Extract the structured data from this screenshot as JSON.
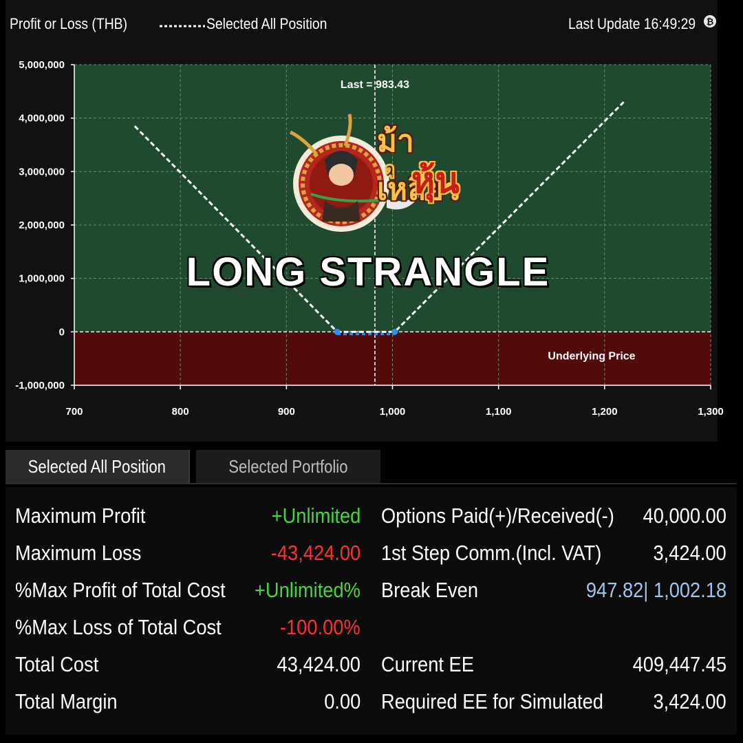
{
  "header": {
    "title": "Profit or Loss (THB)",
    "legend_label": "Selected All Position",
    "last_update": "Last Update 16:49:29"
  },
  "overlay": {
    "title": "LONG STRANGLE",
    "logo_text_top": "ม้าเหลียว",
    "logo_text_mid": "ดู",
    "logo_text_bottom": "หุ้น"
  },
  "chart_data": {
    "type": "line",
    "title": "Profit or Loss (THB)",
    "xlabel": "Underlying Price",
    "ylabel": "Profit or Loss (THB)",
    "xlim": [
      700,
      1300
    ],
    "ylim": [
      -1000000,
      5000000
    ],
    "x_ticks": [
      700,
      800,
      900,
      1000,
      1100,
      1200,
      1300
    ],
    "x_tick_labels": [
      "700",
      "800",
      "900",
      "1,000",
      "1,100",
      "1,200",
      "1,300"
    ],
    "y_ticks": [
      -1000000,
      0,
      1000000,
      2000000,
      3000000,
      4000000,
      5000000
    ],
    "y_tick_labels": [
      "-1,000,000",
      "0",
      "1,000,000",
      "2,000,000",
      "3,000,000",
      "4,000,000",
      "5,000,000"
    ],
    "grid": true,
    "last_price": 983.43,
    "last_label": "Last = 983.43",
    "series": [
      {
        "name": "Selected All Position",
        "x": [
          757,
          947.82,
          1002.18,
          1218
        ],
        "y": [
          3850000,
          0,
          0,
          4300000
        ]
      }
    ],
    "loss_segment": {
      "x": [
        947.82,
        1002.18
      ],
      "y": [
        -43424,
        -43424
      ]
    },
    "break_even_points": [
      947.82,
      1002.18
    ],
    "colors": {
      "profit_zone": "#1f4a2f",
      "loss_zone": "#520a0a",
      "line": "#ffffff",
      "break_even": "#2f8ff0"
    }
  },
  "tabs": [
    {
      "label": "Selected All Position",
      "active": true
    },
    {
      "label": "Selected Portfolio",
      "active": false
    }
  ],
  "summary": {
    "left": [
      {
        "label": "Maximum Profit",
        "value": "+Unlimited",
        "color": "green"
      },
      {
        "label": "Maximum Loss",
        "value": "-43,424.00",
        "color": "red"
      },
      {
        "label": "%Max Profit of Total Cost",
        "value": "+Unlimited%",
        "color": "green"
      },
      {
        "label": "%Max Loss of Total Cost",
        "value": "-100.00%",
        "color": "red"
      },
      {
        "label": "Total Cost",
        "value": "43,424.00",
        "color": "white"
      },
      {
        "label": "Total Margin",
        "value": "0.00",
        "color": "white"
      }
    ],
    "right": [
      {
        "label": "Options Paid(+)/Received(-)",
        "value": "40,000.00",
        "color": "white"
      },
      {
        "label": "1st Step Comm.(Incl. VAT)",
        "value": "3,424.00",
        "color": "white"
      },
      {
        "label": "Break Even",
        "value": "947.82| 1,002.18",
        "color": "blue"
      },
      {
        "label": "Current EE",
        "value": "409,447.45",
        "color": "white"
      },
      {
        "label": "Required EE for Simulated",
        "value": "3,424.00",
        "color": "white"
      }
    ]
  }
}
